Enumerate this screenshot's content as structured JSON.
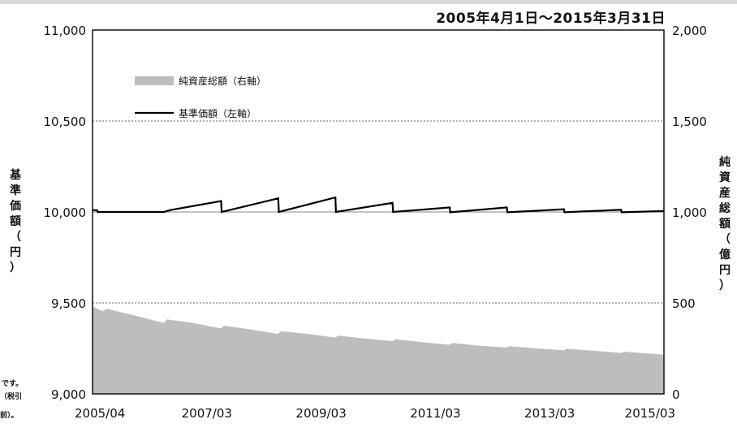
{
  "period_label": "2005年4月1日～2015年3月31日",
  "chart_data": {
    "type": "line+area",
    "x_labels": [
      "2005/04",
      "2007/03",
      "2009/03",
      "2011/03",
      "2013/03",
      "2015/03"
    ],
    "left_axis": {
      "label": "基準価額（円）",
      "ticks": [
        "9,000",
        "9,500",
        "10,000",
        "10,500",
        "11,000"
      ],
      "ylim": [
        9000,
        11000
      ]
    },
    "right_axis": {
      "label": "純資産総額（億円）",
      "ticks": [
        "0",
        "500",
        "1,000",
        "1,500",
        "2,000"
      ],
      "ylim": [
        0,
        2000
      ]
    },
    "grid": "dotted horizontal at 9,500 / 10,500",
    "legend_placement": "upper-left",
    "series": [
      {
        "name": "純資産総額（右軸）",
        "kind": "area",
        "axis": "right",
        "color": "#bdbdbd",
        "x": [
          2005.25,
          2005.42,
          2005.5,
          2006.0,
          2006.5,
          2006.55,
          2007.0,
          2007.5,
          2007.55,
          2008.0,
          2008.5,
          2008.55,
          2009.0,
          2009.5,
          2009.55,
          2010.0,
          2010.5,
          2010.55,
          2011.0,
          2011.5,
          2011.55,
          2012.0,
          2012.5,
          2012.55,
          2013.0,
          2013.5,
          2013.55,
          2014.0,
          2014.5,
          2014.55,
          2015.25
        ],
        "values": [
          480,
          455,
          468,
          430,
          390,
          410,
          390,
          360,
          375,
          355,
          330,
          345,
          330,
          310,
          320,
          305,
          290,
          300,
          285,
          270,
          280,
          265,
          255,
          262,
          250,
          240,
          248,
          238,
          225,
          232,
          215
        ]
      },
      {
        "name": "基準価額（左軸）",
        "kind": "line",
        "axis": "left",
        "color": "#000000",
        "x": [
          2005.25,
          2005.33,
          2005.34,
          2006.5,
          2006.6,
          2007.5,
          2007.51,
          2008.5,
          2008.51,
          2009.5,
          2009.51,
          2010.5,
          2010.51,
          2011.5,
          2011.51,
          2012.5,
          2012.51,
          2013.5,
          2013.51,
          2014.5,
          2014.51,
          2015.25
        ],
        "values": [
          10010,
          10010,
          10000,
          10000,
          10010,
          10060,
          10000,
          10075,
          10000,
          10080,
          10000,
          10050,
          10000,
          10025,
          9998,
          10025,
          9998,
          10015,
          9998,
          10012,
          9998,
          10005
        ]
      }
    ]
  },
  "notes": [
    "です。",
    "（税引",
    "前）。"
  ]
}
